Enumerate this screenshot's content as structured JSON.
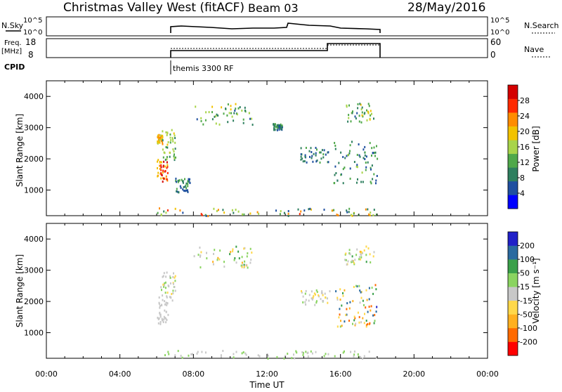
{
  "header": {
    "station": "Christmas Valley West (fitACF)",
    "beam": "Beam 03",
    "date": "28/May/2016"
  },
  "top_panels": {
    "nsky": {
      "label": "N.Sky",
      "ticks_left": [
        "10^5",
        "10^0"
      ],
      "ticks_right": [
        "10^5",
        "10^0"
      ],
      "right_label": "N.Search"
    },
    "freq": {
      "label_line1": "Freq.",
      "label_line2": "[MHz]",
      "ticks_left": [
        "18",
        "8"
      ],
      "ticks_right": [
        "60",
        "0"
      ],
      "right_label": "Nave"
    },
    "cpid": {
      "label": "CPID",
      "program": "themis 3300 RF"
    }
  },
  "axes": {
    "x_ticks": [
      "00:00",
      "04:00",
      "08:00",
      "12:00",
      "16:00",
      "20:00",
      "00:00"
    ],
    "x_label": "Time UT",
    "y_label": "Slant Range [km]",
    "y_ticks": [
      "1000",
      "2000",
      "3000",
      "4000"
    ]
  },
  "colorbars": {
    "power": {
      "title": "Power [dB]",
      "labels": [
        "4",
        "8",
        "12",
        "16",
        "20",
        "24",
        "28"
      ]
    },
    "velocity": {
      "title": "Velocity [m s⁻¹]",
      "labels": [
        "-200",
        "-100",
        "-50",
        "-15",
        "15",
        "50",
        "100",
        "200"
      ]
    }
  },
  "colors": {
    "power_scale": [
      "#0000ff",
      "#1f4fa0",
      "#2e7f5f",
      "#4fa84a",
      "#a8d44a",
      "#f2c200",
      "#ff8c00",
      "#ff2a00",
      "#d40000"
    ],
    "velocity_scale": [
      "#ff0000",
      "#ff6a00",
      "#ffb020",
      "#ffd84a",
      "#c8c8c8",
      "#8ad460",
      "#3aa04a",
      "#2a6aa0",
      "#2020c8"
    ]
  },
  "chart_data": [
    {
      "type": "scatter",
      "title": "Christmas Valley West (fitACF) Beam 03 28/May/2016",
      "subtitle": "Power",
      "xlabel": "Time UT",
      "ylabel": "Slant Range [km]",
      "xlim": [
        0,
        24
      ],
      "ylim": [
        180,
        4500
      ],
      "grid": false,
      "colorbar": "Power [dB]",
      "clusters": [
        {
          "x": [
            6.0,
            6.6
          ],
          "y": [
            1300,
            2000
          ],
          "value_range": [
            16,
            29
          ]
        },
        {
          "x": [
            6.0,
            6.3
          ],
          "y": [
            2500,
            2800
          ],
          "value_range": [
            14,
            22
          ]
        },
        {
          "x": [
            6.2,
            7.0
          ],
          "y": [
            2000,
            3000
          ],
          "value_range": [
            8,
            18
          ]
        },
        {
          "x": [
            7.0,
            7.8
          ],
          "y": [
            950,
            1400
          ],
          "value_range": [
            4,
            12
          ]
        },
        {
          "x": [
            8.0,
            11.2
          ],
          "y": [
            3100,
            3800
          ],
          "value_range": [
            6,
            20
          ]
        },
        {
          "x": [
            12.3,
            12.8
          ],
          "y": [
            2950,
            3150
          ],
          "value_range": [
            4,
            12
          ]
        },
        {
          "x": [
            13.8,
            15.4
          ],
          "y": [
            1900,
            2400
          ],
          "value_range": [
            4,
            12
          ]
        },
        {
          "x": [
            15.6,
            18.0
          ],
          "y": [
            1200,
            2600
          ],
          "value_range": [
            4,
            14
          ]
        },
        {
          "x": [
            16.2,
            17.8
          ],
          "y": [
            3200,
            3800
          ],
          "value_range": [
            6,
            18
          ]
        },
        {
          "x": [
            6.0,
            18.0
          ],
          "y": [
            200,
            450
          ],
          "value_range": [
            4,
            24
          ]
        }
      ]
    },
    {
      "type": "scatter",
      "title": "",
      "subtitle": "Velocity",
      "xlabel": "Time UT",
      "ylabel": "Slant Range [km]",
      "xlim": [
        0,
        24
      ],
      "ylim": [
        180,
        4500
      ],
      "grid": false,
      "colorbar": "Velocity [m s⁻¹]",
      "clusters": [
        {
          "x": [
            6.0,
            6.6
          ],
          "y": [
            1300,
            2200
          ],
          "value_range": [
            -15,
            15
          ]
        },
        {
          "x": [
            6.2,
            7.0
          ],
          "y": [
            2000,
            3000
          ],
          "value_range": [
            -50,
            50
          ]
        },
        {
          "x": [
            8.0,
            11.2
          ],
          "y": [
            3100,
            3800
          ],
          "value_range": [
            -100,
            100
          ]
        },
        {
          "x": [
            13.8,
            15.4
          ],
          "y": [
            1900,
            2400
          ],
          "value_range": [
            -50,
            50
          ]
        },
        {
          "x": [
            15.6,
            18.0
          ],
          "y": [
            1200,
            2600
          ],
          "value_range": [
            -200,
            200
          ]
        },
        {
          "x": [
            16.2,
            17.8
          ],
          "y": [
            3200,
            3800
          ],
          "value_range": [
            -100,
            100
          ]
        },
        {
          "x": [
            6.0,
            18.0
          ],
          "y": [
            200,
            450
          ],
          "value_range": [
            -15,
            50
          ]
        }
      ]
    }
  ]
}
